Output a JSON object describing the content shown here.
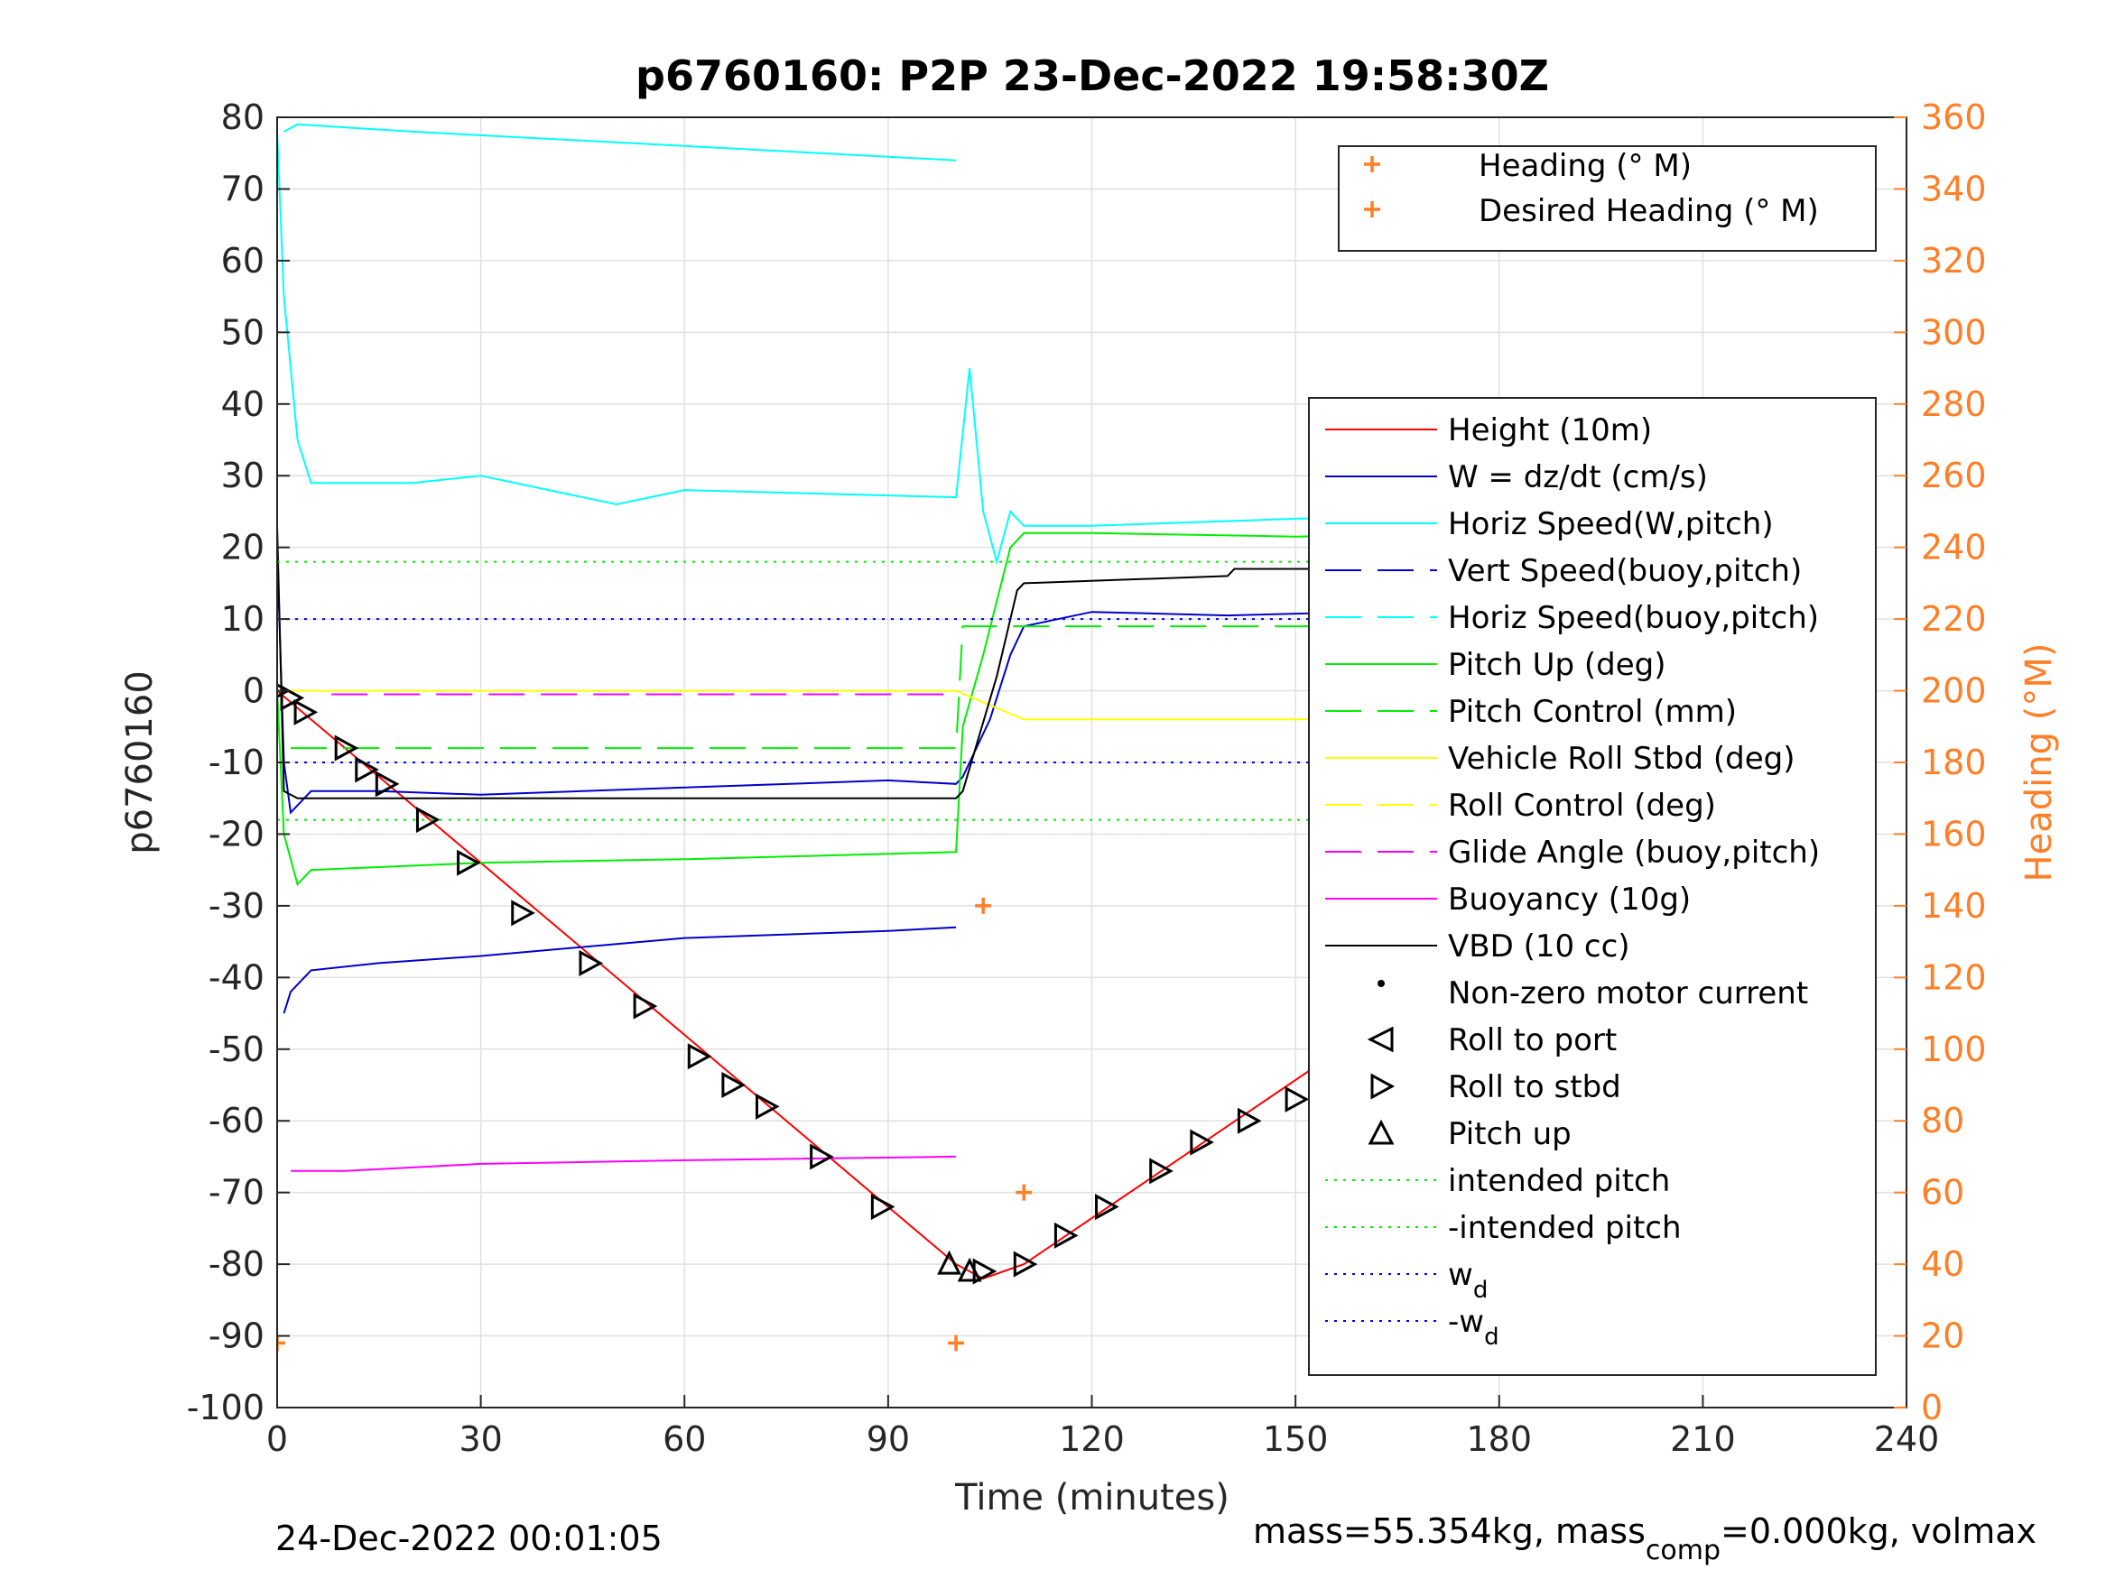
{
  "figure": {
    "title": "p6760160: P2P 23-Dec-2022 19:58:30Z",
    "footer_left": "24-Dec-2022 00:01:05",
    "footer_right_prefix": "mass=55.354kg, mass",
    "footer_right_sub": "comp",
    "footer_right_suffix": "=0.000kg, volmax"
  },
  "colors": {
    "height": "#ff0000",
    "w": "#0000cc",
    "horiz_speed": "#00ffff",
    "pitch": "#00ee00",
    "roll": "#ffff00",
    "buoyancy": "#ff00ff",
    "glide": "#ff00ff",
    "vbd": "#000000",
    "heading": "#ff7f27",
    "wd": "#0000ff"
  },
  "chart_data": {
    "type": "line",
    "title": "p6760160: P2P 23-Dec-2022 19:58:30Z",
    "xlabel": "Time (minutes)",
    "ylabel": "p6760160",
    "ylabel_right": "Heading (°M)",
    "xlim": [
      0,
      240
    ],
    "ylim": [
      -100,
      80
    ],
    "ylim_right": [
      0,
      360
    ],
    "xticks": [
      "0",
      "30",
      "60",
      "90",
      "120",
      "150",
      "180",
      "210",
      "240"
    ],
    "yticks": [
      "80",
      "70",
      "60",
      "50",
      "40",
      "30",
      "20",
      "10",
      "0",
      "-10",
      "-20",
      "-30",
      "-40",
      "-50",
      "-60",
      "-70",
      "-80",
      "-90",
      "-100"
    ],
    "yticks_right": [
      "360",
      "340",
      "320",
      "300",
      "280",
      "260",
      "240",
      "220",
      "200",
      "180",
      "160",
      "140",
      "120",
      "100",
      "80",
      "60",
      "40",
      "20",
      "0"
    ],
    "grid": true,
    "legend_heading": [
      "Heading (° M)",
      "Desired Heading (° M)"
    ],
    "legend_main": [
      "Height (10m)",
      "W = dz/dt (cm/s)",
      "Horiz Speed(W,pitch)",
      "Vert Speed(buoy,pitch)",
      "Horiz Speed(buoy,pitch)",
      "Pitch Up (deg)",
      "Pitch Control (mm)",
      "Vehicle Roll Stbd (deg)",
      "Roll Control (deg)",
      "Glide Angle (buoy,pitch)",
      "Buoyancy (10g)",
      "VBD (10 cc)",
      "Non-zero motor current",
      "Roll to port",
      "Roll to stbd",
      "Pitch up",
      "intended pitch",
      "-intended pitch",
      "w_d",
      "-w_d"
    ],
    "series": [
      {
        "name": "Height (10m)",
        "x": [
          0,
          100,
          104,
          110,
          233
        ],
        "y": [
          0,
          -80,
          -82,
          -80,
          -1
        ]
      },
      {
        "name": "W = dz/dt (cm/s)",
        "x": [
          0,
          1,
          2,
          5,
          15,
          30,
          60,
          90,
          100,
          101,
          105,
          108,
          110,
          120,
          140,
          160,
          200,
          233
        ],
        "y": [
          20,
          -10,
          -17,
          -14,
          -14,
          -14.5,
          -13.5,
          -12.5,
          -13,
          -12,
          -4,
          5,
          9,
          11,
          10.5,
          11,
          11,
          11
        ]
      },
      {
        "name": "Horiz Speed(W,pitch)",
        "x": [
          0,
          1,
          3,
          5,
          20,
          30,
          40,
          50,
          60,
          80,
          100,
          102,
          104,
          106,
          108,
          110,
          120,
          150,
          180,
          200,
          233
        ],
        "y": [
          78,
          55,
          35,
          29,
          29,
          30,
          28,
          26,
          28,
          27.5,
          27,
          45,
          25,
          18,
          25,
          23,
          23,
          24,
          24.5,
          24,
          23
        ]
      },
      {
        "name": "Vert Speed(buoy,pitch)",
        "x": [
          1,
          2,
          5,
          15,
          30,
          60,
          90,
          100
        ],
        "y": [
          -45,
          -42,
          -39,
          -38,
          -37,
          -34.5,
          -33.5,
          -33
        ]
      },
      {
        "name": "Horiz Speed(buoy,pitch)",
        "x": [
          1,
          3,
          20,
          60,
          100
        ],
        "y": [
          78,
          79,
          78,
          76,
          74
        ]
      },
      {
        "name": "Pitch Up (deg)",
        "x": [
          0,
          1,
          3,
          5,
          30,
          60,
          100,
          101,
          104,
          108,
          110,
          120,
          150,
          180,
          233
        ],
        "y": [
          0,
          -20,
          -27,
          -25,
          -24,
          -23.5,
          -22.5,
          -5,
          5,
          20,
          22,
          22,
          21.5,
          22,
          21
        ]
      },
      {
        "name": "Pitch Control (mm)",
        "x": [
          2,
          100,
          101,
          233
        ],
        "y": [
          -8,
          -8,
          9,
          9
        ]
      },
      {
        "name": "Vehicle Roll Stbd (deg)",
        "x": [
          0,
          5,
          30,
          60,
          100,
          110,
          140,
          180,
          233
        ],
        "y": [
          0,
          0,
          0,
          0,
          0,
          -4,
          -4,
          -4,
          -4
        ]
      },
      {
        "name": "Glide Angle (buoy,pitch)",
        "x": [
          8,
          100
        ],
        "y": [
          -0.5,
          -0.5
        ]
      },
      {
        "name": "Buoyancy (10g)",
        "x": [
          2,
          10,
          30,
          60,
          100
        ],
        "y": [
          -67,
          -67,
          -66,
          -65.5,
          -65
        ]
      },
      {
        "name": "VBD (10 cc)",
        "x": [
          0,
          1,
          3,
          100,
          101,
          106,
          109,
          110,
          140,
          141,
          196,
          197,
          230,
          233
        ],
        "y": [
          23,
          -14,
          -15,
          -15,
          -14,
          2,
          14,
          15,
          16,
          17,
          17,
          19,
          21,
          21
        ]
      },
      {
        "name": "intended pitch",
        "x": [
          0,
          233
        ],
        "y": [
          18,
          18
        ]
      },
      {
        "name": "-intended pitch",
        "x": [
          0,
          233
        ],
        "y": [
          -18,
          -18
        ]
      },
      {
        "name": "w_d",
        "x": [
          0,
          233
        ],
        "y": [
          10,
          10
        ]
      },
      {
        "name": "-w_d",
        "x": [
          0,
          233
        ],
        "y": [
          -10,
          -10
        ]
      },
      {
        "name": "Heading (° M)",
        "axis": "right",
        "x": [
          0,
          100,
          104,
          110,
          233
        ],
        "y": [
          18,
          18,
          140,
          60,
          20
        ]
      }
    ],
    "markers": [
      {
        "name": "Roll to stbd",
        "x": [
          0,
          2,
          4,
          10,
          13,
          16,
          22,
          28,
          36,
          46,
          54,
          62,
          67,
          72,
          80,
          89,
          104,
          110,
          116,
          122,
          130,
          136,
          143,
          150,
          158,
          166,
          172,
          180,
          190,
          198,
          208,
          216,
          224,
          230
        ],
        "y": [
          0,
          -1,
          -3,
          -8,
          -11,
          -13,
          -18,
          -24,
          -31,
          -38,
          -44,
          -51,
          -55,
          -58,
          -65,
          -72,
          -81,
          -80,
          -76,
          -72,
          -67,
          -63,
          -60,
          -57,
          -52,
          -47,
          -41,
          -35,
          -28,
          -22,
          -16,
          -11,
          -6,
          -2
        ]
      },
      {
        "name": "Pitch up",
        "x": [
          99,
          102
        ],
        "y": [
          -80,
          -81
        ]
      }
    ]
  }
}
